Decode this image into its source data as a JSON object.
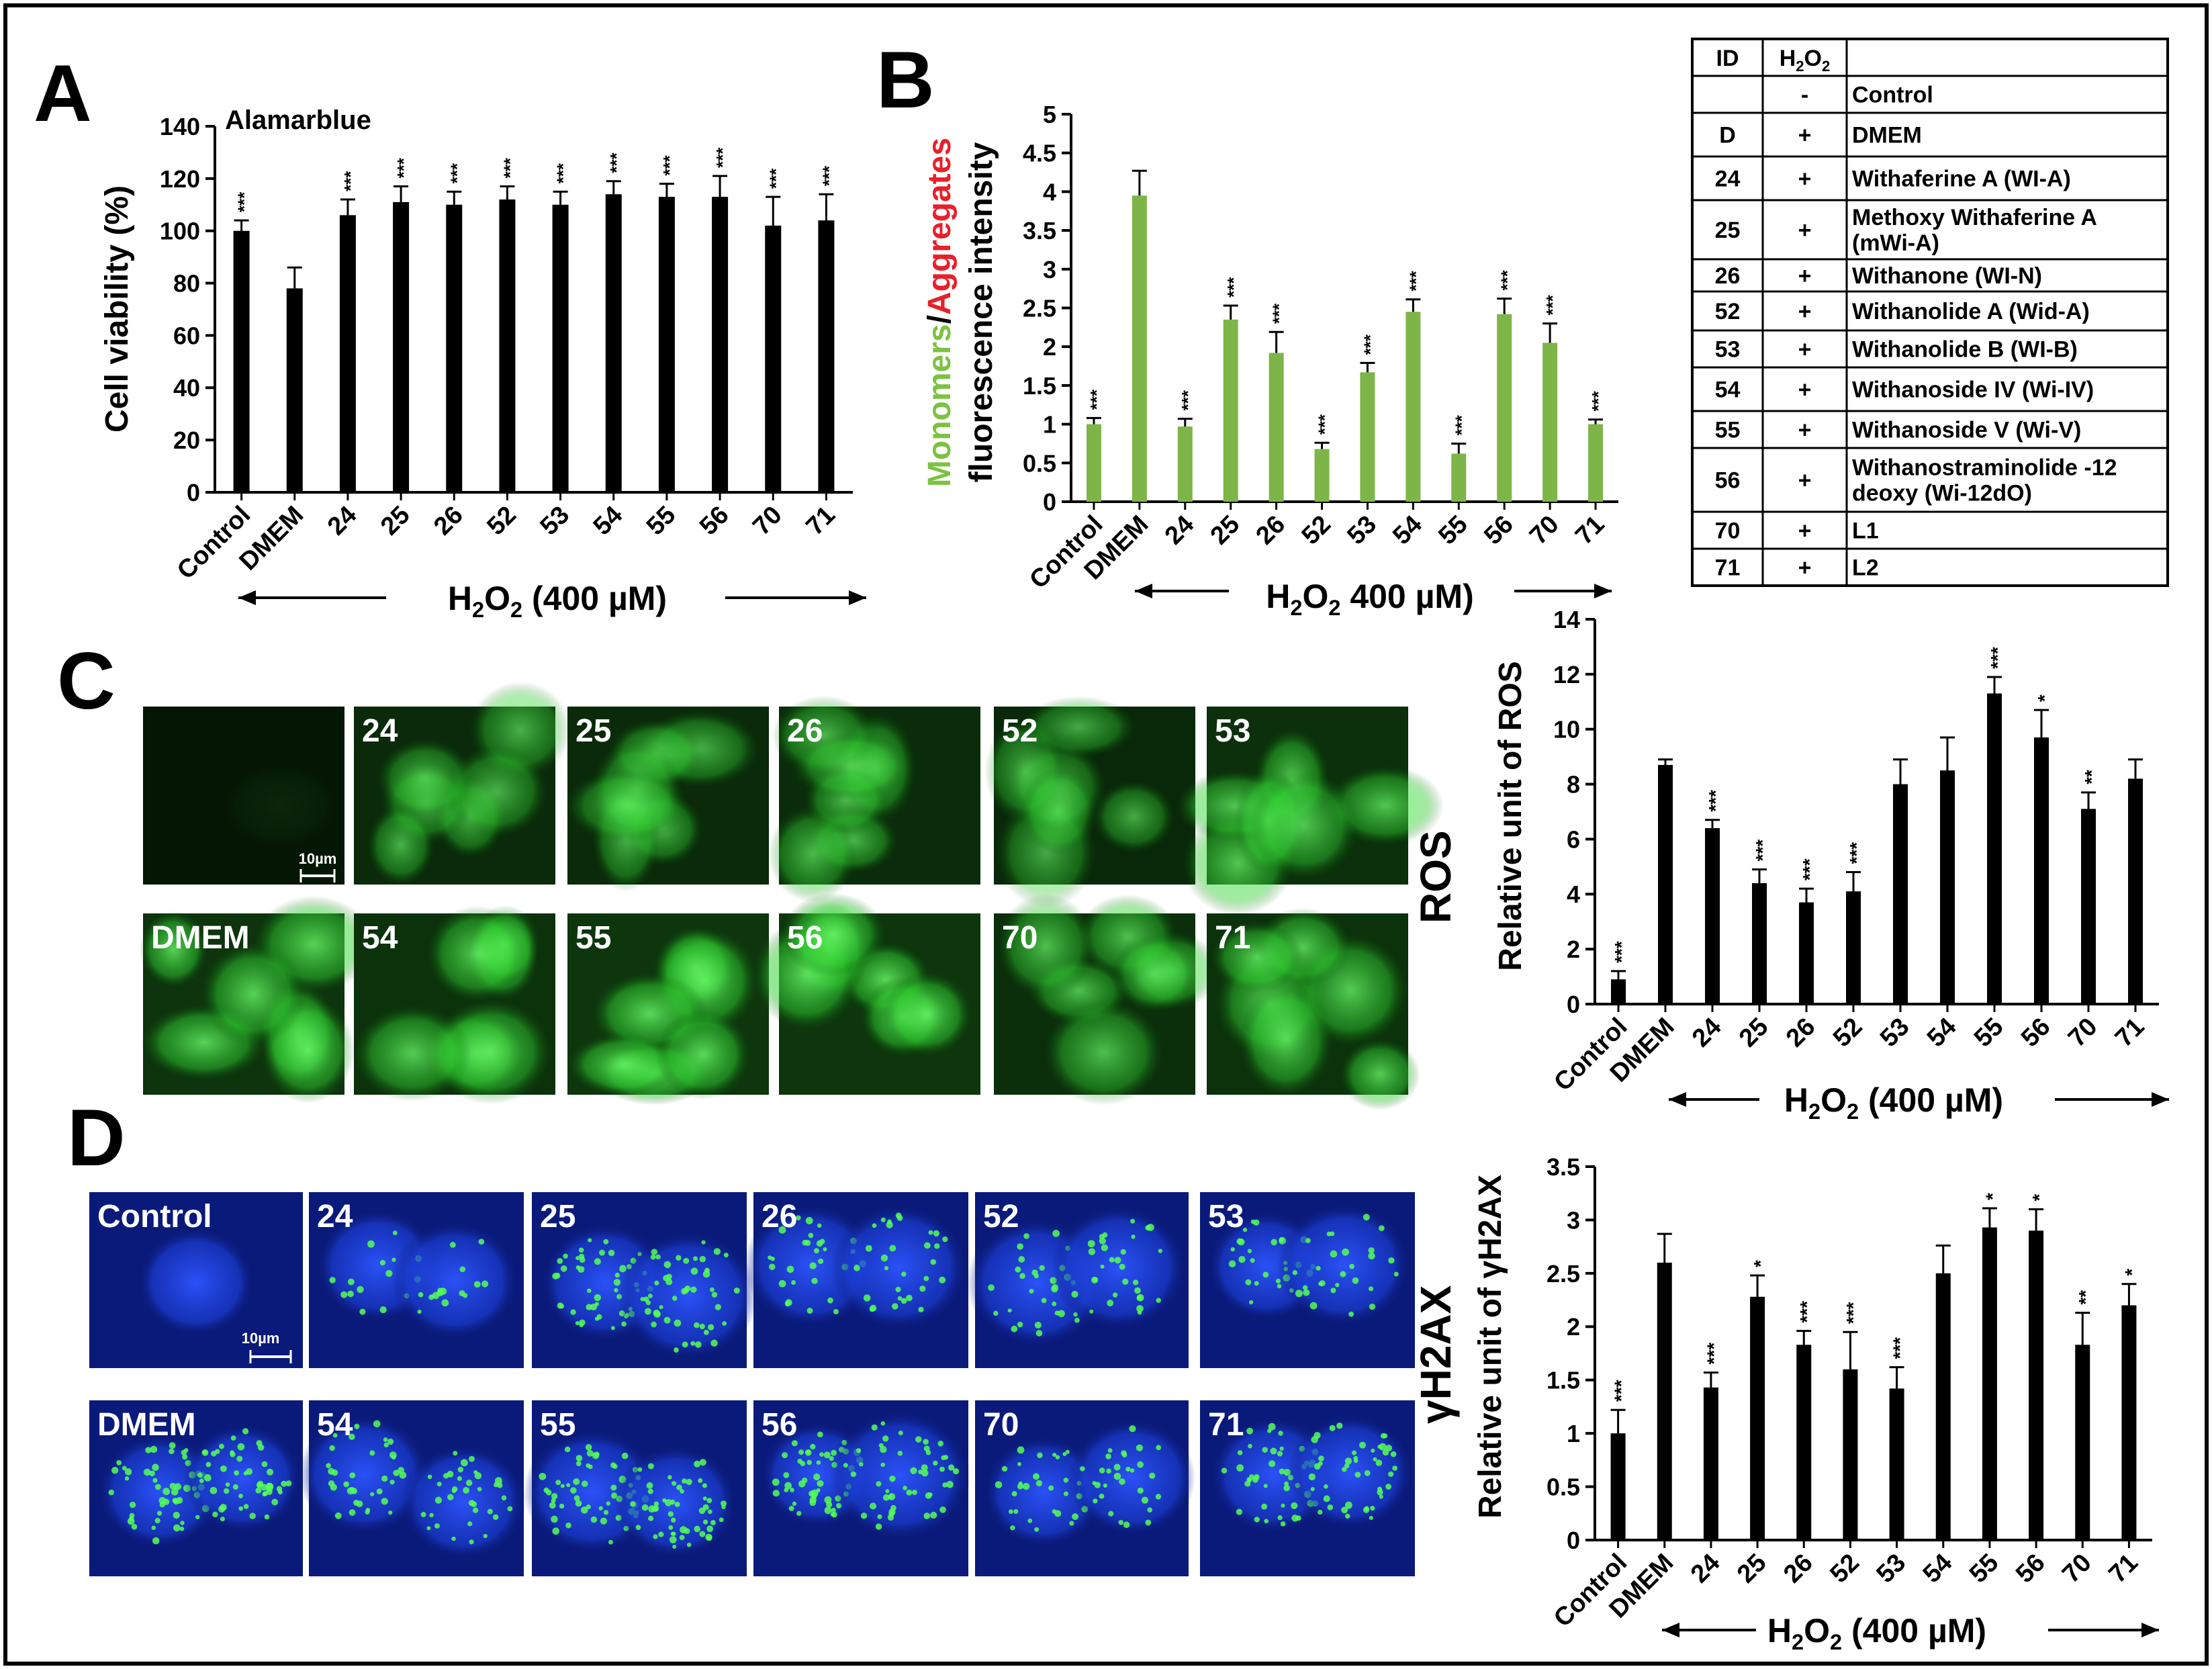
{
  "panels": {
    "a": "A",
    "b": "B",
    "c": "C",
    "d": "D"
  },
  "chart_data": [
    {
      "panel": "A",
      "type": "bar",
      "title": "Alamarblue",
      "ylabel": "Cell viability (%)",
      "xlabel": "H2O2 (400 µM)",
      "xlabel_main": "H",
      "xlabel_sub": "2",
      "xlabel_main2": "O",
      "xlabel_sub2": "2",
      "xlabel_rest": " (400 µM)",
      "categories": [
        "Control",
        "DMEM",
        "24",
        "25",
        "26",
        "52",
        "53",
        "54",
        "55",
        "56",
        "70",
        "71"
      ],
      "values": [
        100,
        78,
        106,
        111,
        110,
        112,
        110,
        114,
        113,
        113,
        102,
        104
      ],
      "errors": [
        4,
        8,
        6,
        6,
        5,
        5,
        5,
        5,
        5,
        8,
        11,
        10
      ],
      "significance": [
        "***",
        "",
        "***",
        "***",
        "***",
        "***",
        "***",
        "***",
        "***",
        "***",
        "***",
        "***"
      ],
      "ylim": [
        0,
        140
      ],
      "yticks": [
        0,
        20,
        40,
        60,
        80,
        100,
        120,
        140
      ],
      "color": "#000000"
    },
    {
      "panel": "B",
      "type": "bar",
      "ylabel_monomers": "Monomers",
      "ylabel_slash": "/",
      "ylabel_aggregates": "Aggregates",
      "ylabel_line2": "fluorescence intensity",
      "xlabel_main": "H",
      "xlabel_sub": "2",
      "xlabel_main2": "O",
      "xlabel_sub2": "2",
      "xlabel_rest": " 400 µM)",
      "categories": [
        "Control",
        "DMEM",
        "24",
        "25",
        "26",
        "52",
        "53",
        "54",
        "55",
        "56",
        "70",
        "71"
      ],
      "values": [
        1.0,
        3.95,
        0.97,
        2.35,
        1.92,
        0.68,
        1.67,
        2.45,
        0.62,
        2.42,
        2.05,
        1.0
      ],
      "errors": [
        0.08,
        0.32,
        0.1,
        0.18,
        0.27,
        0.08,
        0.12,
        0.16,
        0.13,
        0.2,
        0.25,
        0.06
      ],
      "significance": [
        "***",
        "",
        "***",
        "***",
        "***",
        "***",
        "***",
        "***",
        "***",
        "***",
        "***",
        "***"
      ],
      "ylim": [
        0,
        5
      ],
      "yticks": [
        0,
        0.5,
        1,
        1.5,
        2,
        2.5,
        3,
        3.5,
        4,
        4.5,
        5
      ],
      "yticklabels": [
        "0",
        "0.5",
        "1",
        "1.5",
        "2",
        "2.5",
        "3",
        "3.5",
        "4",
        "4.5",
        "5"
      ],
      "color": "#7db548",
      "ylabel_colors": {
        "monomers": "#7cc242",
        "aggregates": "#e8202a"
      }
    },
    {
      "panel": "C",
      "type": "bar",
      "side_label": "ROS",
      "ylabel": "Relative unit of ROS",
      "xlabel_main": "H",
      "xlabel_sub": "2",
      "xlabel_main2": "O",
      "xlabel_sub2": "2",
      "xlabel_rest": " (400 µM)",
      "categories": [
        "Control",
        "DMEM",
        "24",
        "25",
        "26",
        "52",
        "53",
        "54",
        "55",
        "56",
        "70",
        "71"
      ],
      "values": [
        0.9,
        8.7,
        6.4,
        4.4,
        3.7,
        4.1,
        8.0,
        8.5,
        11.3,
        9.7,
        7.1,
        8.2
      ],
      "errors": [
        0.3,
        0.2,
        0.3,
        0.5,
        0.5,
        0.7,
        0.9,
        1.2,
        0.6,
        1.0,
        0.6,
        0.7
      ],
      "significance": [
        "***",
        "",
        "***",
        "***",
        "***",
        "***",
        "",
        "",
        "***",
        "*",
        "**",
        ""
      ],
      "ylim": [
        0,
        14
      ],
      "yticks": [
        0,
        2,
        4,
        6,
        8,
        10,
        12,
        14
      ],
      "color": "#000000"
    },
    {
      "panel": "D",
      "type": "bar",
      "side_label": "γH2AX",
      "ylabel": "Relative unit of γH2AX",
      "xlabel_main": "H",
      "xlabel_sub": "2",
      "xlabel_main2": "O",
      "xlabel_sub2": "2",
      "xlabel_rest": " (400 µM)",
      "categories": [
        "Control",
        "DMEM",
        "24",
        "25",
        "26",
        "52",
        "53",
        "54",
        "55",
        "56",
        "70",
        "71"
      ],
      "values": [
        1.0,
        2.6,
        1.43,
        2.28,
        1.83,
        1.6,
        1.42,
        2.5,
        2.93,
        2.9,
        1.83,
        2.2
      ],
      "errors": [
        0.22,
        0.27,
        0.14,
        0.2,
        0.13,
        0.35,
        0.2,
        0.26,
        0.18,
        0.2,
        0.3,
        0.2
      ],
      "significance": [
        "***",
        "",
        "***",
        "*",
        "***",
        "***",
        "***",
        "",
        "*",
        "*",
        "**",
        "*"
      ],
      "ylim": [
        0,
        3.5
      ],
      "yticks": [
        0,
        0.5,
        1,
        1.5,
        2,
        2.5,
        3,
        3.5
      ],
      "yticklabels": [
        "0",
        "0.5",
        "1",
        "1.5",
        "2",
        "2.5",
        "3",
        "3.5"
      ],
      "color": "#000000"
    }
  ],
  "legend_table": {
    "header_id": "ID",
    "header_h_main": "H",
    "header_h_sub1": "2",
    "header_h_main2": "O",
    "header_h_sub2": "2",
    "rows": [
      {
        "id": "",
        "h2o2": "-",
        "name": [
          "Control"
        ]
      },
      {
        "id": "D",
        "h2o2": "+",
        "name": [
          "DMEM"
        ]
      },
      {
        "id": "24",
        "h2o2": "+",
        "name": [
          "Withaferine A (WI-A)"
        ]
      },
      {
        "id": "25",
        "h2o2": "+",
        "name": [
          "Methoxy Withaferine A",
          "(mWi-A)"
        ]
      },
      {
        "id": "26",
        "h2o2": "+",
        "name": [
          "Withanone (WI-N)"
        ]
      },
      {
        "id": "52",
        "h2o2": "+",
        "name": [
          "Withanolide A (Wid-A)"
        ]
      },
      {
        "id": "53",
        "h2o2": "+",
        "name": [
          "Withanolide B (WI-B)"
        ]
      },
      {
        "id": "54",
        "h2o2": "+",
        "name": [
          "Withanoside IV (Wi-IV)"
        ]
      },
      {
        "id": "55",
        "h2o2": "+",
        "name": [
          "Withanoside V (Wi-V)"
        ]
      },
      {
        "id": "56",
        "h2o2": "+",
        "name": [
          "Withanostraminolide -12",
          "deoxy (Wi-12dO)"
        ]
      },
      {
        "id": "70",
        "h2o2": "+",
        "name": [
          "L1"
        ]
      },
      {
        "id": "71",
        "h2o2": "+",
        "name": [
          "L2"
        ]
      }
    ]
  },
  "micrographs_c": {
    "scale_bar": "10µm",
    "tiles": [
      {
        "label": "",
        "brightness": 0.05
      },
      {
        "label": "24",
        "brightness": 0.55
      },
      {
        "label": "25",
        "brightness": 0.55
      },
      {
        "label": "26",
        "brightness": 0.6
      },
      {
        "label": "52",
        "brightness": 0.5
      },
      {
        "label": "53",
        "brightness": 0.7
      },
      {
        "label": "DMEM",
        "brightness": 0.8
      },
      {
        "label": "54",
        "brightness": 0.75
      },
      {
        "label": "55",
        "brightness": 0.85
      },
      {
        "label": "56",
        "brightness": 0.85
      },
      {
        "label": "70",
        "brightness": 0.65
      },
      {
        "label": "71",
        "brightness": 0.75
      }
    ]
  },
  "micrographs_d": {
    "scale_bar": "10µm",
    "tiles": [
      {
        "label": "Control",
        "foci": 0.0
      },
      {
        "label": "24",
        "foci": 0.25
      },
      {
        "label": "25",
        "foci": 0.8
      },
      {
        "label": "26",
        "foci": 0.5
      },
      {
        "label": "52",
        "foci": 0.5
      },
      {
        "label": "53",
        "foci": 0.45
      },
      {
        "label": "DMEM",
        "foci": 0.85
      },
      {
        "label": "54",
        "foci": 0.6
      },
      {
        "label": "55",
        "foci": 0.9
      },
      {
        "label": "56",
        "foci": 0.85
      },
      {
        "label": "70",
        "foci": 0.5
      },
      {
        "label": "71",
        "foci": 0.75
      }
    ]
  },
  "colors": {
    "green_fluor": "#2fbf2f",
    "blue_fluor": "#1e3ad8",
    "foci": "#55ff55",
    "ink": "#000000"
  }
}
